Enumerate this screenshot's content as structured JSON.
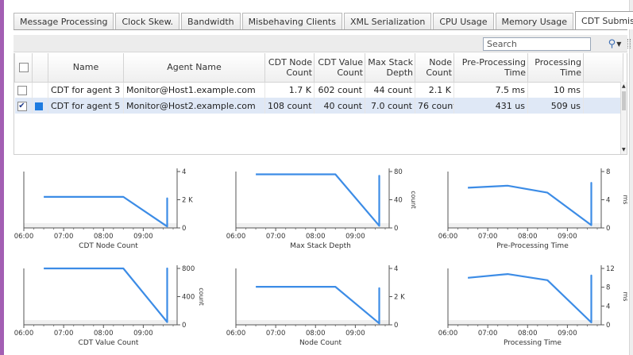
{
  "tabs": [
    {
      "label": "Message Processing",
      "active": false
    },
    {
      "label": "Clock Skew.",
      "active": false
    },
    {
      "label": "Bandwidth",
      "active": false
    },
    {
      "label": "Misbehaving Clients",
      "active": false
    },
    {
      "label": "XML Serialization",
      "active": false
    },
    {
      "label": "CPU Usage",
      "active": false
    },
    {
      "label": "Memory Usage",
      "active": false
    },
    {
      "label": "CDT Submission",
      "active": true
    }
  ],
  "search": {
    "placeholder": "Search",
    "value": ""
  },
  "table": {
    "headers": [
      "Name",
      "Agent Name",
      "CDT Node Count",
      "CDT Value Count",
      "Max Stack Depth",
      "Node Count",
      "Pre-Processing Time",
      "Processing Time"
    ],
    "rows": [
      {
        "checked": false,
        "swatch": false,
        "cells": [
          "CDT for agent 3",
          "Monitor@Host1.example.com",
          "1.7 K",
          "602 count",
          "44 count",
          "2.1 K",
          "7.5 ms",
          "10 ms"
        ]
      },
      {
        "checked": true,
        "swatch": true,
        "swatch_color": "#1e7be0",
        "cells": [
          "CDT for agent 5",
          "Monitor@Host2.example.com",
          "108 count",
          "40 count",
          "7.0 count",
          "76 count",
          "431 us",
          "509 us"
        ]
      }
    ]
  },
  "series_color": "#3c8ce6",
  "chart_data": [
    {
      "type": "line",
      "title": "CDT Node Count",
      "x_ticks": [
        "06:00",
        "07:00",
        "08:00",
        "09:00"
      ],
      "y_ticks": [
        "0",
        "2 K",
        "4"
      ],
      "y_unit": "",
      "ylim": [
        0,
        4
      ],
      "series": [
        {
          "x": [
            6.5,
            8.5,
            9.6,
            9.6,
            9.6
          ],
          "y": [
            2.2,
            2.2,
            0.1,
            2.1,
            0.1
          ]
        }
      ]
    },
    {
      "type": "line",
      "title": "Max Stack Depth",
      "x_ticks": [
        "06:00",
        "07:00",
        "08:00",
        "09:00"
      ],
      "y_ticks": [
        "0",
        "40",
        "80"
      ],
      "y_unit": "count",
      "ylim": [
        0,
        80
      ],
      "series": [
        {
          "x": [
            6.5,
            8.5,
            9.6,
            9.6,
            9.6
          ],
          "y": [
            76,
            76,
            3,
            74,
            3
          ]
        }
      ]
    },
    {
      "type": "line",
      "title": "Pre-Processing Time",
      "x_ticks": [
        "06:00",
        "07:00",
        "08:00",
        "09:00"
      ],
      "y_ticks": [
        "0",
        "4",
        "8"
      ],
      "y_unit": "ms",
      "ylim": [
        0,
        8
      ],
      "series": [
        {
          "x": [
            6.5,
            7.5,
            8.5,
            9.6,
            9.6,
            9.6
          ],
          "y": [
            5.7,
            6.0,
            5.0,
            0.4,
            6.4,
            0.4
          ]
        }
      ]
    },
    {
      "type": "line",
      "title": "CDT Value Count",
      "x_ticks": [
        "06:00",
        "07:00",
        "08:00",
        "09:00"
      ],
      "y_ticks": [
        "0",
        "400",
        "800"
      ],
      "y_unit": "count",
      "ylim": [
        0,
        800
      ],
      "series": [
        {
          "x": [
            6.5,
            8.5,
            9.6,
            9.6,
            9.6
          ],
          "y": [
            800,
            800,
            40,
            800,
            40
          ]
        }
      ]
    },
    {
      "type": "line",
      "title": "Node Count",
      "x_ticks": [
        "06:00",
        "07:00",
        "08:00",
        "09:00"
      ],
      "y_ticks": [
        "0",
        "2 K",
        "4"
      ],
      "y_unit": "",
      "ylim": [
        0,
        4
      ],
      "series": [
        {
          "x": [
            6.5,
            8.5,
            9.6,
            9.6,
            9.6
          ],
          "y": [
            2.7,
            2.7,
            0.1,
            2.6,
            0.1
          ]
        }
      ]
    },
    {
      "type": "line",
      "title": "Processing Time",
      "x_ticks": [
        "06:00",
        "07:00",
        "08:00",
        "09:00"
      ],
      "y_ticks": [
        "0",
        "4",
        "8",
        "12"
      ],
      "y_unit": "ms",
      "ylim": [
        0,
        12
      ],
      "series": [
        {
          "x": [
            6.5,
            7.5,
            8.5,
            9.6,
            9.6,
            9.6
          ],
          "y": [
            10,
            10.8,
            9.5,
            0.5,
            10.5,
            0.5
          ]
        }
      ]
    }
  ]
}
